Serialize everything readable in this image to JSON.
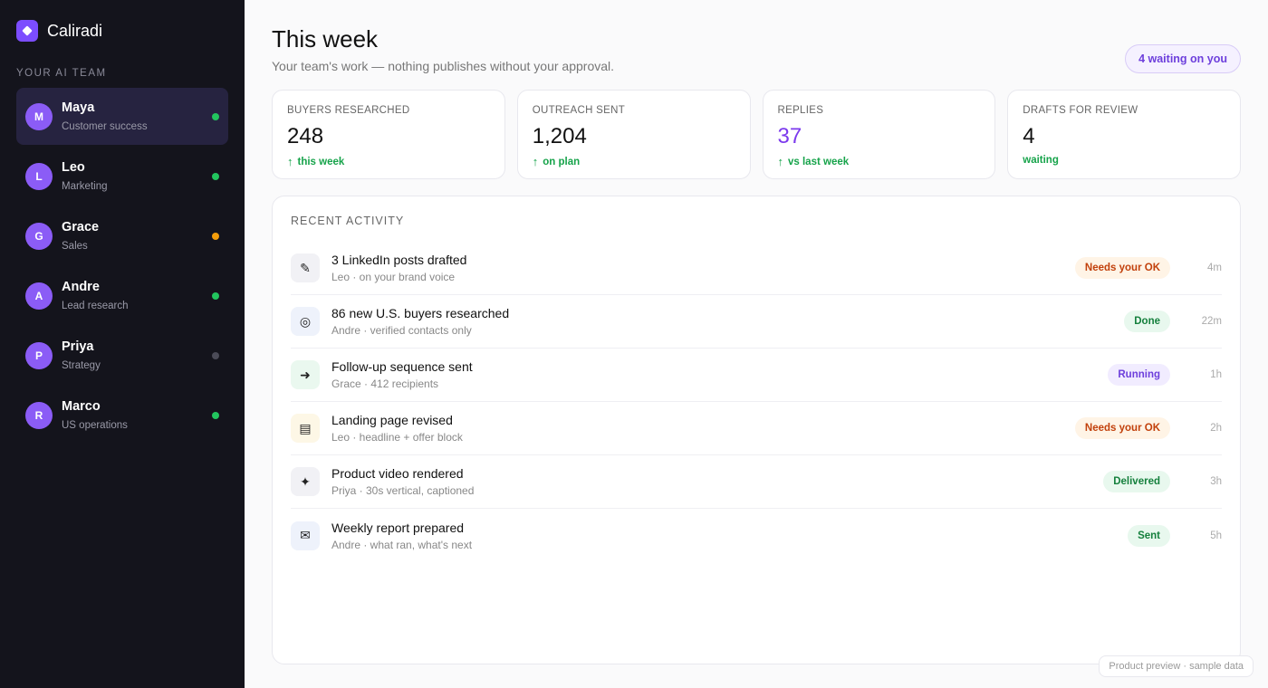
{
  "app": {
    "name": "Caliradi",
    "logo_icon": "diamond-icon"
  },
  "sidebar": {
    "team_label": "YOUR AI TEAM",
    "members": [
      {
        "initial": "M",
        "name": "Maya",
        "role": "Customer success",
        "status_color": "#22c55e",
        "active": true
      },
      {
        "initial": "L",
        "name": "Leo",
        "role": "Marketing",
        "status_color": "#22c55e",
        "active": false
      },
      {
        "initial": "G",
        "name": "Grace",
        "role": "Sales",
        "status_color": "#f59e0b",
        "active": false
      },
      {
        "initial": "A",
        "name": "Andre",
        "role": "Lead research",
        "status_color": "#22c55e",
        "active": false
      },
      {
        "initial": "P",
        "name": "Priya",
        "role": "Strategy",
        "status_color": "#4b4b57",
        "active": false
      },
      {
        "initial": "R",
        "name": "Marco",
        "role": "US operations",
        "status_color": "#22c55e",
        "active": false
      }
    ]
  },
  "header": {
    "title": "This week",
    "subtitle": "Your team's work — nothing publishes without your approval.",
    "waiting_pill": "4 waiting on you"
  },
  "stats": [
    {
      "label": "BUYERS RESEARCHED",
      "value": "248",
      "arrow": "↑",
      "note": "this week",
      "accent": false
    },
    {
      "label": "OUTREACH SENT",
      "value": "1,204",
      "arrow": "↑",
      "note": "on plan",
      "accent": false
    },
    {
      "label": "REPLIES",
      "value": "37",
      "arrow": "↑",
      "note": "vs last week",
      "accent": true
    },
    {
      "label": "DRAFTS FOR REVIEW",
      "value": "4",
      "arrow": "",
      "note": "waiting",
      "accent": false
    }
  ],
  "activity": {
    "title": "RECENT ACTIVITY",
    "rows": [
      {
        "icon": "pencil-icon",
        "glyph": "✎",
        "icon_bg": "#f1f1f5",
        "title": "3 LinkedIn posts drafted",
        "meta": "Leo · on your brand voice",
        "badge": "Needs your OK",
        "badge_kind": "warn",
        "time": "4m"
      },
      {
        "icon": "target-icon",
        "glyph": "◎",
        "icon_bg": "#eef2fb",
        "title": "86 new U.S. buyers researched",
        "meta": "Andre · verified contacts only",
        "badge": "Done",
        "badge_kind": "ok",
        "time": "22m"
      },
      {
        "icon": "arrow-right-icon",
        "glyph": "➜",
        "icon_bg": "#eaf8ef",
        "title": "Follow-up sequence sent",
        "meta": "Grace · 412 recipients",
        "badge": "Running",
        "badge_kind": "run",
        "time": "1h"
      },
      {
        "icon": "document-icon",
        "glyph": "▤",
        "icon_bg": "#fdf7e6",
        "title": "Landing page revised",
        "meta": "Leo · headline + offer block",
        "badge": "Needs your OK",
        "badge_kind": "warn",
        "time": "2h"
      },
      {
        "icon": "sparkle-icon",
        "glyph": "✦",
        "icon_bg": "#f1f1f5",
        "title": "Product video rendered",
        "meta": "Priya · 30s vertical, captioned",
        "badge": "Delivered",
        "badge_kind": "ok",
        "time": "3h"
      },
      {
        "icon": "envelope-icon",
        "glyph": "✉",
        "icon_bg": "#eef2fb",
        "title": "Weekly report prepared",
        "meta": "Andre · what ran, what's next",
        "badge": "Sent",
        "badge_kind": "ok",
        "time": "5h"
      }
    ]
  },
  "footer_note": "Product preview · sample data"
}
